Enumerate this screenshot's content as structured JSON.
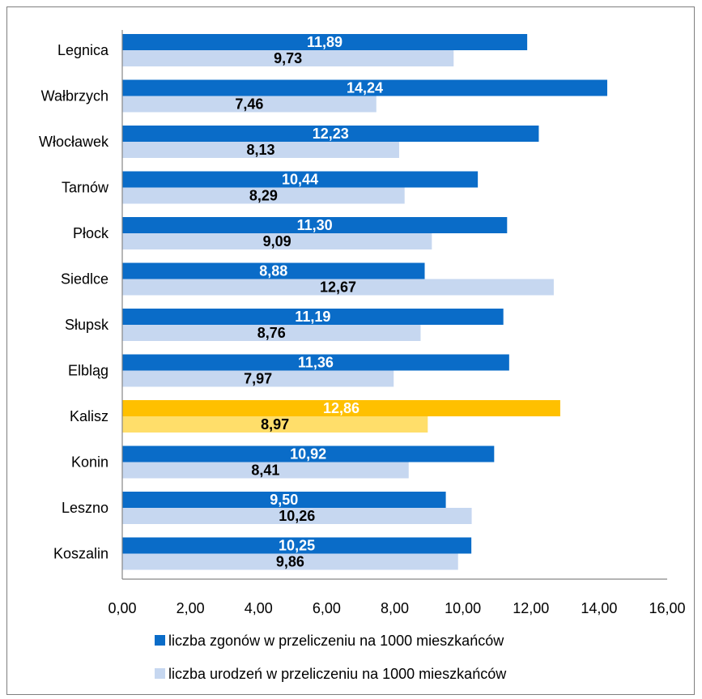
{
  "colors": {
    "series_dark": "#0a6cc8",
    "series_light": "#c6d7f0",
    "highlight_dark": "#ffc000",
    "highlight_light": "#ffde6a",
    "axis": "#868686",
    "frame": "#7f7f7f"
  },
  "chart_data": {
    "type": "bar",
    "orientation": "horizontal",
    "categories": [
      "Legnica",
      "Wałbrzych",
      "Włocławek",
      "Tarnów",
      "Płock",
      "Siedlce",
      "Słupsk",
      "Elbląg",
      "Kalisz",
      "Konin",
      "Leszno",
      "Koszalin"
    ],
    "highlight_category": "Kalisz",
    "series": [
      {
        "name": "liczba zgonów w przeliczeniu na 1000 mieszkańców",
        "values": [
          11.89,
          14.24,
          12.23,
          10.44,
          11.3,
          8.88,
          11.19,
          11.36,
          12.86,
          10.92,
          9.5,
          10.25
        ],
        "value_labels": [
          "11,89",
          "14,24",
          "12,23",
          "10,44",
          "11,30",
          "8,88",
          "11,19",
          "11,36",
          "12,86",
          "10,92",
          "9,50",
          "10,25"
        ]
      },
      {
        "name": "liczba urodzeń w przeliczeniu na 1000 mieszkańców",
        "values": [
          9.73,
          7.46,
          8.13,
          8.29,
          9.09,
          12.67,
          8.76,
          7.97,
          8.97,
          8.41,
          10.26,
          9.86
        ],
        "value_labels": [
          "9,73",
          "7,46",
          "8,13",
          "8,29",
          "9,09",
          "12,67",
          "8,76",
          "7,97",
          "8,97",
          "8,41",
          "10,26",
          "9,86"
        ]
      }
    ],
    "x_ticks": [
      0,
      2,
      4,
      6,
      8,
      10,
      12,
      14,
      16
    ],
    "x_tick_labels": [
      "0,00",
      "2,00",
      "4,00",
      "6,00",
      "8,00",
      "10,00",
      "12,00",
      "14,00",
      "16,00"
    ],
    "xlim": [
      0,
      16
    ],
    "grid": false,
    "legend_position": "bottom",
    "title": "",
    "xlabel": "",
    "ylabel": ""
  }
}
